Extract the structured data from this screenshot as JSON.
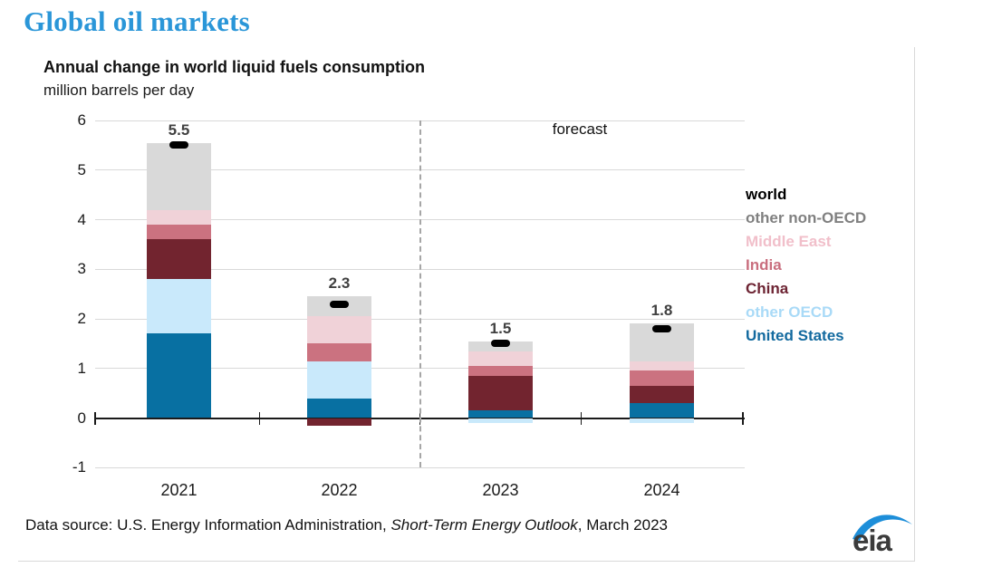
{
  "page": {
    "title": "Global oil markets"
  },
  "chart": {
    "title": "Annual change in world liquid fuels consumption",
    "subtitle": "million barrels per day",
    "forecast_label": "forecast",
    "footer": {
      "prefix": "Data source: U.S. Energy Information Administration, ",
      "italic": "Short-Term Energy Outlook",
      "suffix": ", March 2023"
    },
    "logo_text": "eia",
    "colors": {
      "title_blue": "#2a96d8",
      "gridline": "#d9d9d9",
      "zero_axis": "#1a1a1a",
      "forecast_dash": "#a6a6a6",
      "value_label": "#404040",
      "logo_swoosh": "#1d8ed9",
      "logo_text": "#3b3b3b"
    }
  },
  "chart_data": {
    "type": "bar",
    "stacked": true,
    "title": "Annual change in world liquid fuels consumption",
    "ylabel": "million barrels per day",
    "categories": [
      "2021",
      "2022",
      "2023",
      "2024"
    ],
    "series": [
      {
        "name": "United States",
        "color": "#0870a2",
        "values": [
          1.7,
          0.4,
          0.15,
          0.3
        ]
      },
      {
        "name": "other OECD",
        "color": "#c9e9fb",
        "values": [
          1.1,
          0.75,
          -0.1,
          -0.1
        ]
      },
      {
        "name": "China",
        "color": "#72242f",
        "values": [
          0.8,
          -0.15,
          0.7,
          0.35
        ]
      },
      {
        "name": "India",
        "color": "#cb7280",
        "values": [
          0.3,
          0.35,
          0.2,
          0.3
        ]
      },
      {
        "name": "Middle East",
        "color": "#f0d2d8",
        "values": [
          0.3,
          0.55,
          0.3,
          0.2
        ]
      },
      {
        "name": "other non-OECD",
        "color": "#d9d9d9",
        "values": [
          1.35,
          0.4,
          0.2,
          0.75
        ]
      }
    ],
    "world_marker": {
      "name": "world",
      "color": "#000000",
      "values": [
        5.5,
        2.3,
        1.5,
        1.8
      ]
    },
    "bar_labels": [
      "5.5",
      "2.3",
      "1.5",
      "1.8"
    ],
    "yticks": [
      6,
      5,
      4,
      3,
      2,
      1,
      0,
      -1
    ],
    "ylim": [
      -1,
      6
    ],
    "grid": true,
    "forecast_divider_after": "2022",
    "legend_position": "right",
    "legend": [
      {
        "label": "world",
        "color": "#000000"
      },
      {
        "label": "other non-OECD",
        "color": "#808080"
      },
      {
        "label": "Middle East",
        "color": "#f1bfca"
      },
      {
        "label": "India",
        "color": "#c96e7e"
      },
      {
        "label": "China",
        "color": "#6d2433"
      },
      {
        "label": "other OECD",
        "color": "#a9daf7"
      },
      {
        "label": "United States",
        "color": "#136a9f"
      }
    ]
  }
}
